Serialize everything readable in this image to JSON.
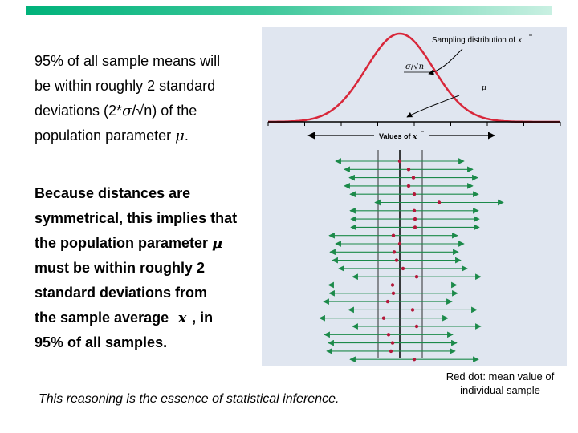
{
  "text": {
    "para1_lines": [
      "95% of all sample means will",
      "be within roughly 2 standard",
      "deviations (2*",
      "/√n) of the",
      "population parameter "
    ],
    "sigma": "σ",
    "mu": "μ",
    "period": ".",
    "para2_lines": [
      "Because distances are",
      "symmetrical, this implies that",
      "the population parameter ",
      "must be within roughly 2",
      "standard deviations from",
      "the sample average ",
      ", in",
      "95% of all samples."
    ],
    "xbar_symbol": "x",
    "footer": "This reasoning is the essence of statistical inference.",
    "note": "Red dot: mean value of individual sample"
  },
  "figure": {
    "title_text": "Sampling distribution of",
    "title_symbol": "x",
    "sd_label_sigma": "σ",
    "sd_label_over": "/√",
    "sd_label_n": "n",
    "mu_label": "μ",
    "axis_label_text": "Values of",
    "axis_label_symbol": "x",
    "intervals_note": "sample means with ±2 SD intervals (positions relative to μ)",
    "samples": [
      0.0,
      0.55,
      0.85,
      0.55,
      0.9,
      2.45,
      0.9,
      0.95,
      0.95,
      -0.4,
      0.0,
      -0.35,
      -0.2,
      0.2,
      1.05,
      -0.45,
      -0.4,
      -0.75,
      0.8,
      -1.0,
      1.05,
      -0.7,
      -0.45,
      -0.55,
      0.9
    ],
    "colors": {
      "curve": "#d8273a",
      "interval": "#1c8a4a",
      "dot": "#b3183a",
      "panel": "#e0e6f0"
    }
  }
}
